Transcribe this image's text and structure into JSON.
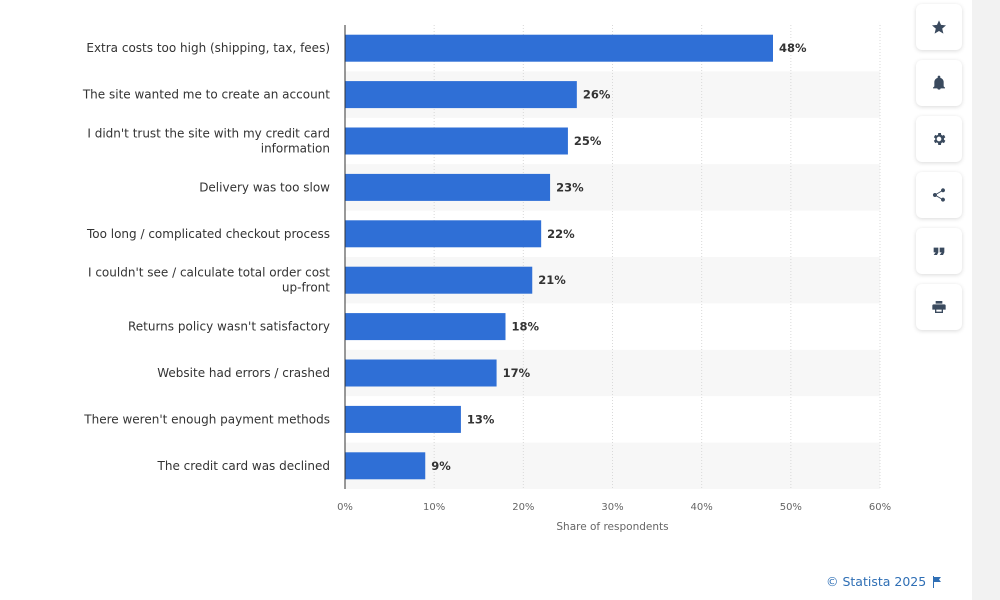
{
  "chart_data": {
    "type": "bar",
    "orientation": "horizontal",
    "categories": [
      [
        "Extra costs too high (shipping, tax, fees)"
      ],
      [
        "The site wanted me to create an account"
      ],
      [
        "I didn't trust the site with my credit card",
        "information"
      ],
      [
        "Delivery was too slow"
      ],
      [
        "Too long / complicated checkout process"
      ],
      [
        "I couldn't see / calculate total order cost",
        "up-front"
      ],
      [
        "Returns policy wasn't satisfactory"
      ],
      [
        "Website had errors / crashed"
      ],
      [
        "There weren't enough payment methods"
      ],
      [
        "The credit card was declined"
      ]
    ],
    "values": [
      48,
      26,
      25,
      23,
      22,
      21,
      18,
      17,
      13,
      9
    ],
    "value_labels": [
      "48%",
      "26%",
      "25%",
      "23%",
      "22%",
      "21%",
      "18%",
      "17%",
      "13%",
      "9%"
    ],
    "xlim": [
      0,
      60
    ],
    "xticks": [
      0,
      10,
      20,
      30,
      40,
      50,
      60
    ],
    "xtick_labels": [
      "0%",
      "10%",
      "20%",
      "30%",
      "40%",
      "50%",
      "60%"
    ],
    "xlabel": "Share of respondents",
    "grid": true,
    "bar_color": "#2f6fd6"
  },
  "toolbar": {
    "buttons": [
      {
        "name": "favorite",
        "icon": "star-icon"
      },
      {
        "name": "notify",
        "icon": "bell-icon"
      },
      {
        "name": "settings",
        "icon": "gear-icon"
      },
      {
        "name": "share",
        "icon": "share-icon"
      },
      {
        "name": "cite",
        "icon": "quote-icon"
      },
      {
        "name": "print",
        "icon": "print-icon"
      }
    ]
  },
  "footer": {
    "credit": "© Statista 2025"
  }
}
